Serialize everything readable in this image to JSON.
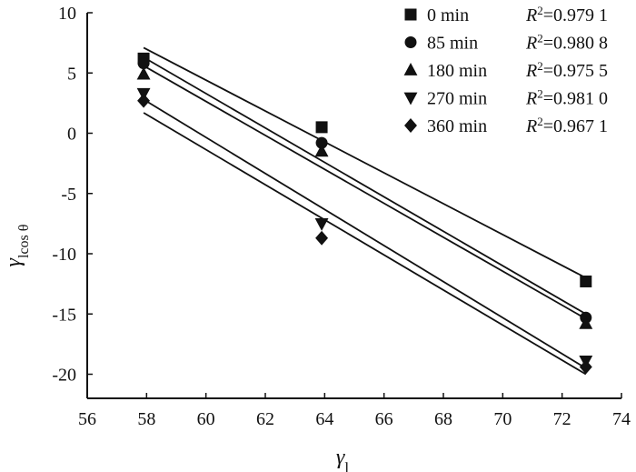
{
  "chart_data": {
    "type": "scatter",
    "title": "",
    "xlabel": "γ",
    "xlabel_subscript": "l",
    "ylabel": "γ",
    "ylabel_subscript": "lcos θ",
    "xlim": [
      56,
      74
    ],
    "ylim": [
      -22,
      10
    ],
    "xticks": [
      56,
      58,
      60,
      62,
      64,
      66,
      68,
      70,
      72,
      74
    ],
    "yticks": [
      10,
      5,
      0,
      -5,
      -10,
      -15,
      -20
    ],
    "xtick_labels": [
      "56",
      "58",
      "60",
      "62",
      "64",
      "66",
      "68",
      "70",
      "72",
      "74"
    ],
    "ytick_labels": [
      "10",
      "5",
      "0",
      "-5",
      "-10",
      "-15",
      "-20"
    ],
    "legend_position": "top-right",
    "series": [
      {
        "name": "0 min",
        "marker": "square",
        "x": [
          57.9,
          63.9,
          72.8
        ],
        "y": [
          6.2,
          0.5,
          -12.3
        ],
        "fit_line": {
          "x": [
            57.9,
            72.8
          ],
          "y": [
            7.1,
            -12.0
          ]
        },
        "r2_prefix": "R",
        "r2_exponent": "2",
        "r2_value": "=0.979 1"
      },
      {
        "name": "85 min",
        "marker": "circle",
        "x": [
          57.9,
          63.9,
          72.8
        ],
        "y": [
          5.8,
          -0.8,
          -15.3
        ],
        "fit_line": {
          "x": [
            57.9,
            72.8
          ],
          "y": [
            6.3,
            -15.0
          ]
        },
        "r2_prefix": "R",
        "r2_exponent": "2",
        "r2_value": "=0.980 8"
      },
      {
        "name": "180 min",
        "marker": "triangle-up",
        "x": [
          57.9,
          63.9,
          72.8
        ],
        "y": [
          4.9,
          -1.5,
          -15.8
        ],
        "fit_line": {
          "x": [
            57.9,
            72.8
          ],
          "y": [
            5.6,
            -15.4
          ]
        },
        "r2_prefix": "R",
        "r2_exponent": "2",
        "r2_value": "=0.975 5"
      },
      {
        "name": "270 min",
        "marker": "triangle-down",
        "x": [
          57.9,
          63.9,
          72.8
        ],
        "y": [
          3.3,
          -7.5,
          -18.9
        ],
        "fit_line": {
          "x": [
            57.9,
            72.8
          ],
          "y": [
            2.8,
            -19.5
          ]
        },
        "r2_prefix": "R",
        "r2_exponent": "2",
        "r2_value": "=0.981 0"
      },
      {
        "name": "360 min",
        "marker": "diamond",
        "x": [
          57.9,
          63.9,
          72.8
        ],
        "y": [
          2.7,
          -8.7,
          -19.4
        ],
        "fit_line": {
          "x": [
            57.9,
            72.8
          ],
          "y": [
            1.7,
            -20.0
          ]
        },
        "r2_prefix": "R",
        "r2_exponent": "2",
        "r2_value": "=0.967 1"
      }
    ]
  },
  "colors": {
    "ink": "#111111",
    "background": "#ffffff"
  }
}
